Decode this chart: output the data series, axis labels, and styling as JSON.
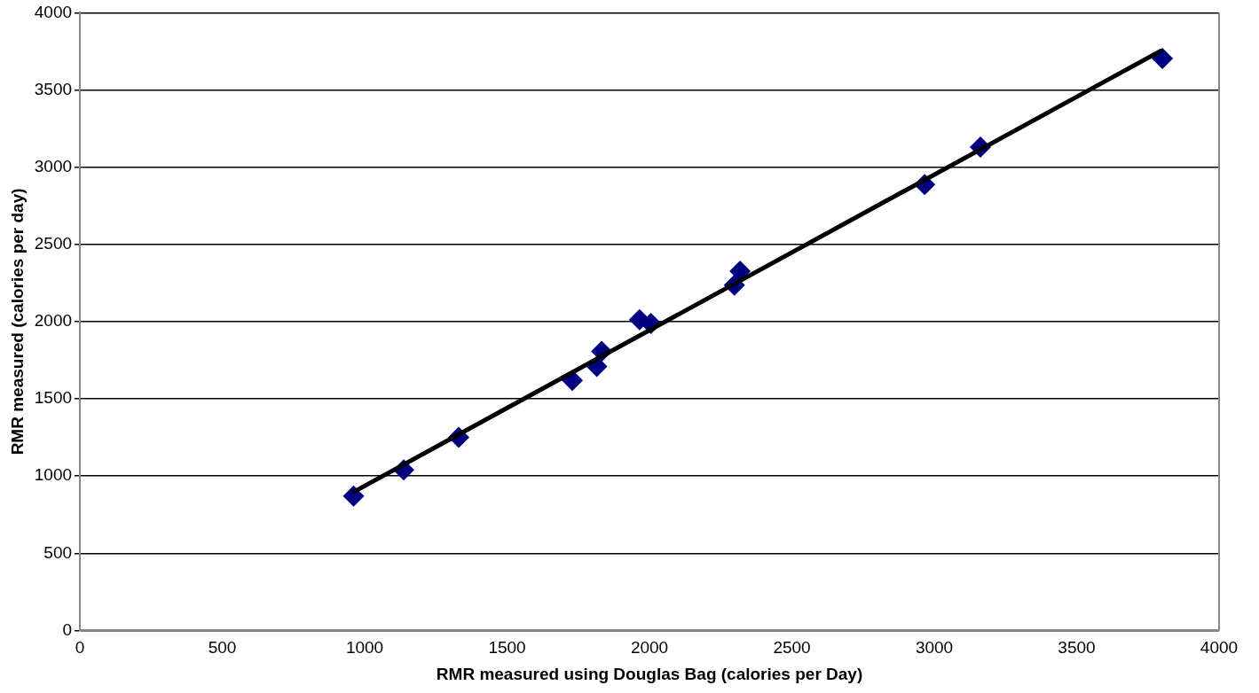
{
  "chart_data": {
    "type": "scatter",
    "xlabel": "RMR measured using Douglas Bag (calories per Day)",
    "ylabel": "RMR measured (calories per day)",
    "x": [
      961,
      1137,
      1330,
      1729,
      1815,
      1832,
      1965,
      2005,
      2298,
      2318,
      2966,
      3162,
      3801
    ],
    "series": [
      {
        "color": "#000080",
        "marker": "diamond",
        "values": [
          870,
          1039,
          1251,
          1619,
          1710,
          1807,
          2012,
          1988,
          2236,
          2326,
          2888,
          3130,
          3704
        ]
      },
      {
        "type": "line",
        "color": "#000000",
        "marker": "none",
        "x": [
          964,
          3794
        ],
        "values": [
          900,
          3752
        ]
      }
    ],
    "xlim": [
      0,
      4000
    ],
    "xticks": [
      0,
      500,
      1000,
      1500,
      2000,
      2500,
      3000,
      3500,
      4000
    ],
    "ylim": [
      0,
      4000
    ],
    "yticks": [
      0,
      500,
      1000,
      1500,
      2000,
      2500,
      3000,
      3500,
      4000
    ],
    "grid": "y",
    "legend": false
  }
}
